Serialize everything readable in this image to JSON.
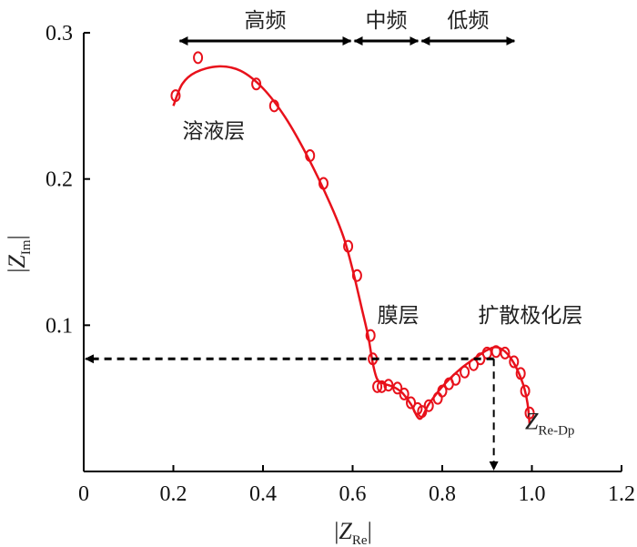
{
  "chart_data": {
    "type": "scatter",
    "xlabel": {
      "pre": "|",
      "main": "Z",
      "sub": "Re",
      "post": "|"
    },
    "ylabel": {
      "pre": "|",
      "main": "Z",
      "sub": "Im",
      "post": "|"
    },
    "xlim": [
      0,
      1.2
    ],
    "ylim": [
      0,
      0.3
    ],
    "x_ticks": [
      "0",
      "0.2",
      "0.4",
      "0.6",
      "0.8",
      "1.0",
      "1.2"
    ],
    "y_ticks": [
      "0.1",
      "0.2",
      "0.3"
    ],
    "grid": false,
    "colors": {
      "series": "#e8111b",
      "axis": "#000000",
      "arrow": "#000000"
    },
    "series": [
      {
        "kind": "measured-points",
        "marker": "open-circle",
        "points": [
          [
            0.205,
            0.257
          ],
          [
            0.255,
            0.283
          ],
          [
            0.385,
            0.265
          ],
          [
            0.425,
            0.25
          ],
          [
            0.505,
            0.216
          ],
          [
            0.535,
            0.197
          ],
          [
            0.59,
            0.154
          ],
          [
            0.61,
            0.134
          ],
          [
            0.64,
            0.093
          ],
          [
            0.645,
            0.077
          ],
          [
            0.655,
            0.058
          ],
          [
            0.665,
            0.058
          ],
          [
            0.68,
            0.059
          ],
          [
            0.7,
            0.057
          ],
          [
            0.715,
            0.053
          ],
          [
            0.73,
            0.047
          ],
          [
            0.745,
            0.043
          ],
          [
            0.755,
            0.041
          ],
          [
            0.77,
            0.045
          ],
          [
            0.79,
            0.05
          ],
          [
            0.8,
            0.055
          ],
          [
            0.815,
            0.06
          ],
          [
            0.83,
            0.063
          ],
          [
            0.85,
            0.068
          ],
          [
            0.87,
            0.073
          ],
          [
            0.885,
            0.077
          ],
          [
            0.9,
            0.081
          ],
          [
            0.92,
            0.082
          ],
          [
            0.94,
            0.081
          ],
          [
            0.96,
            0.075
          ],
          [
            0.975,
            0.067
          ],
          [
            0.985,
            0.055
          ],
          [
            0.995,
            0.04
          ]
        ]
      },
      {
        "kind": "fit-curve",
        "line": "solid",
        "points": [
          [
            0.2,
            0.25
          ],
          [
            0.22,
            0.265
          ],
          [
            0.25,
            0.273
          ],
          [
            0.3,
            0.277
          ],
          [
            0.35,
            0.274
          ],
          [
            0.4,
            0.262
          ],
          [
            0.45,
            0.242
          ],
          [
            0.5,
            0.215
          ],
          [
            0.55,
            0.183
          ],
          [
            0.58,
            0.16
          ],
          [
            0.6,
            0.138
          ],
          [
            0.62,
            0.112
          ],
          [
            0.635,
            0.092
          ],
          [
            0.645,
            0.074
          ],
          [
            0.655,
            0.063
          ],
          [
            0.67,
            0.06
          ],
          [
            0.69,
            0.058
          ],
          [
            0.71,
            0.054
          ],
          [
            0.73,
            0.046
          ],
          [
            0.75,
            0.036
          ],
          [
            0.77,
            0.046
          ],
          [
            0.8,
            0.058
          ],
          [
            0.84,
            0.07
          ],
          [
            0.88,
            0.079
          ],
          [
            0.9,
            0.083
          ],
          [
            0.92,
            0.085
          ],
          [
            0.94,
            0.082
          ],
          [
            0.96,
            0.074
          ],
          [
            0.98,
            0.06
          ],
          [
            0.99,
            0.047
          ],
          [
            0.995,
            0.032
          ]
        ]
      }
    ],
    "frequency_ranges": [
      {
        "label": "高频",
        "from": 0.21,
        "to": 0.6
      },
      {
        "label": "中频",
        "from": 0.6,
        "to": 0.75
      },
      {
        "label": "低频",
        "from": 0.75,
        "to": 0.965
      }
    ],
    "annotations": [
      {
        "text": "溶液层",
        "x": 0.22,
        "y": 0.228
      },
      {
        "text": "膜层",
        "x": 0.655,
        "y": 0.102
      },
      {
        "text": "扩散极化层",
        "x": 0.88,
        "y": 0.102
      }
    ],
    "marker_point": {
      "x": 0.915,
      "y": 0.077,
      "label": {
        "main": "Z",
        "sub": "Re-Dp"
      },
      "label_pos": [
        1.04,
        0.029
      ]
    }
  }
}
